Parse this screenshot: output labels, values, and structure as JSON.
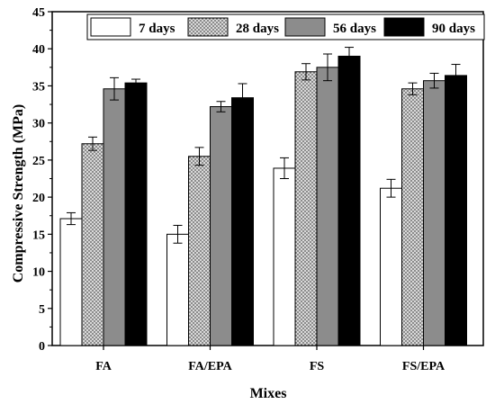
{
  "chart_data": {
    "type": "bar",
    "title": "",
    "xlabel": "Mixes",
    "ylabel": "Compressive Strength (MPa)",
    "ylim": [
      0,
      45
    ],
    "yticks": [
      0,
      5,
      10,
      15,
      20,
      25,
      30,
      35,
      40,
      45
    ],
    "categories": [
      "FA",
      "FA/EPA",
      "FS",
      "FS/EPA"
    ],
    "series": [
      {
        "name": "7 days",
        "values": [
          17.1,
          15.0,
          23.9,
          21.2
        ],
        "errors": [
          0.8,
          1.2,
          1.4,
          1.2
        ],
        "fill": "#ffffff",
        "pattern": "none"
      },
      {
        "name": "28 days",
        "values": [
          27.2,
          25.5,
          36.9,
          34.6
        ],
        "errors": [
          0.9,
          1.2,
          1.1,
          0.8
        ],
        "fill": "#c8c8c8",
        "pattern": "dots"
      },
      {
        "name": "56 days",
        "values": [
          34.6,
          32.2,
          37.5,
          35.7
        ],
        "errors": [
          1.5,
          0.7,
          1.8,
          1.0
        ],
        "fill": "#8c8c8c",
        "pattern": "none"
      },
      {
        "name": "90 days",
        "values": [
          35.4,
          33.4,
          39.0,
          36.4
        ],
        "errors": [
          0.5,
          1.9,
          1.2,
          1.5
        ],
        "fill": "#000000",
        "pattern": "none"
      }
    ],
    "legend_position": "top",
    "grid": false
  }
}
